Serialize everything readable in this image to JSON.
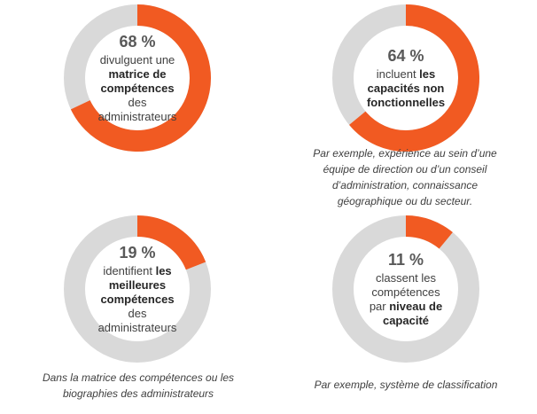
{
  "colors": {
    "accent": "#f15a22",
    "track": "#d9d9d9"
  },
  "chart_data": [
    {
      "type": "pie",
      "percent": 68,
      "values": [
        68,
        32
      ],
      "value_label": "68 %",
      "desc": [
        {
          "text": "divulguent une ",
          "bold": false
        },
        {
          "text": "matrice de compétences",
          "bold": true
        },
        {
          "text": " des administrateurs",
          "bold": false
        }
      ],
      "note": ""
    },
    {
      "type": "pie",
      "percent": 64,
      "values": [
        64,
        36
      ],
      "value_label": "64 %",
      "desc": [
        {
          "text": "incluent ",
          "bold": false
        },
        {
          "text": "les capacités non fonctionnelles",
          "bold": true
        }
      ],
      "note": "Par exemple, expérience au sein d’une équipe de direction ou d’un conseil d’administration, connaissance géographique ou du secteur."
    },
    {
      "type": "pie",
      "percent": 19,
      "values": [
        19,
        81
      ],
      "value_label": "19 %",
      "desc": [
        {
          "text": "identifient ",
          "bold": false
        },
        {
          "text": "les meilleures compétences",
          "bold": true
        },
        {
          "text": " des administrateurs",
          "bold": false
        }
      ],
      "note": "Dans la matrice des compétences ou les biographies des administrateurs"
    },
    {
      "type": "pie",
      "percent": 11,
      "values": [
        11,
        89
      ],
      "value_label": "11 %",
      "desc": [
        {
          "text": "classent les compétences par ",
          "bold": false
        },
        {
          "text": "niveau de capacité",
          "bold": true
        }
      ],
      "note": "Par exemple, système de classification"
    }
  ]
}
